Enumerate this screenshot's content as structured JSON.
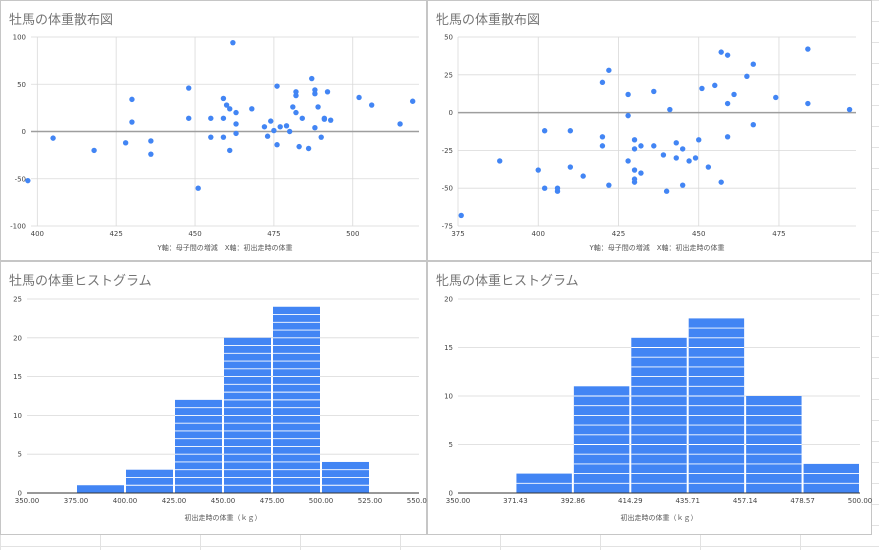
{
  "colors": {
    "series": "#4285f4",
    "grid": "#d9d9d9",
    "zero": "#9e9e9e",
    "text": "#444444"
  },
  "chart_data": [
    {
      "type": "scatter",
      "title": "牡馬の体重散布図",
      "xlabel": "Y軸：母子間の増減　X軸：初出走時の体重",
      "xlim": [
        398,
        521
      ],
      "ylim": [
        -100,
        100
      ],
      "xticks": [
        400,
        425,
        450,
        475,
        500
      ],
      "yticks": [
        -100,
        -50,
        0,
        50,
        100
      ],
      "grid": true,
      "points": [
        [
          397,
          -52
        ],
        [
          405,
          -7
        ],
        [
          418,
          -20
        ],
        [
          428,
          -12
        ],
        [
          430,
          34
        ],
        [
          430,
          10
        ],
        [
          436,
          -10
        ],
        [
          436,
          -24
        ],
        [
          448,
          46
        ],
        [
          448,
          14
        ],
        [
          451,
          -60
        ],
        [
          455,
          14
        ],
        [
          455,
          -6
        ],
        [
          459,
          35
        ],
        [
          459,
          -6
        ],
        [
          459,
          14
        ],
        [
          460,
          28
        ],
        [
          461,
          24
        ],
        [
          461,
          -20
        ],
        [
          462,
          94
        ],
        [
          463,
          20
        ],
        [
          463,
          8
        ],
        [
          463,
          -2
        ],
        [
          468,
          24
        ],
        [
          472,
          5
        ],
        [
          473,
          -5
        ],
        [
          474,
          11
        ],
        [
          475,
          1
        ],
        [
          476,
          48
        ],
        [
          476,
          -14
        ],
        [
          477,
          5
        ],
        [
          479,
          6
        ],
        [
          480,
          0
        ],
        [
          481,
          26
        ],
        [
          482,
          38
        ],
        [
          482,
          42
        ],
        [
          482,
          20
        ],
        [
          483,
          -16
        ],
        [
          484,
          14
        ],
        [
          486,
          -18
        ],
        [
          487,
          56
        ],
        [
          488,
          40
        ],
        [
          488,
          44
        ],
        [
          488,
          4
        ],
        [
          489,
          26
        ],
        [
          490,
          -6
        ],
        [
          491,
          13
        ],
        [
          491,
          14
        ],
        [
          492,
          42
        ],
        [
          493,
          12
        ],
        [
          502,
          36
        ],
        [
          506,
          28
        ],
        [
          515,
          8
        ],
        [
          519,
          32
        ]
      ]
    },
    {
      "type": "scatter",
      "title": "牝馬の体重散布図",
      "xlabel": "Y軸：母子間の増減　X軸：初出走時の体重",
      "xlim": [
        375,
        499
      ],
      "ylim": [
        -75,
        50
      ],
      "xticks": [
        375,
        400,
        425,
        450,
        475
      ],
      "yticks": [
        -75,
        -50,
        -25,
        0,
        25,
        50
      ],
      "grid": true,
      "points": [
        [
          376,
          -68
        ],
        [
          388,
          -32
        ],
        [
          400,
          -38
        ],
        [
          402,
          -50
        ],
        [
          402,
          -12
        ],
        [
          406,
          -50
        ],
        [
          406,
          -52
        ],
        [
          410,
          -12
        ],
        [
          410,
          -36
        ],
        [
          414,
          -42
        ],
        [
          420,
          20
        ],
        [
          420,
          -16
        ],
        [
          420,
          -22
        ],
        [
          422,
          28
        ],
        [
          422,
          -48
        ],
        [
          428,
          12
        ],
        [
          428,
          -2
        ],
        [
          428,
          -32
        ],
        [
          430,
          -18
        ],
        [
          430,
          -24
        ],
        [
          430,
          -38
        ],
        [
          430,
          -44
        ],
        [
          430,
          -46
        ],
        [
          432,
          -22
        ],
        [
          432,
          -40
        ],
        [
          436,
          14
        ],
        [
          436,
          -22
        ],
        [
          439,
          -28
        ],
        [
          440,
          -52
        ],
        [
          441,
          2
        ],
        [
          443,
          -20
        ],
        [
          443,
          -30
        ],
        [
          445,
          -24
        ],
        [
          445,
          -48
        ],
        [
          447,
          -32
        ],
        [
          449,
          -30
        ],
        [
          450,
          -18
        ],
        [
          451,
          16
        ],
        [
          453,
          -36
        ],
        [
          455,
          18
        ],
        [
          457,
          -46
        ],
        [
          457,
          40
        ],
        [
          459,
          38
        ],
        [
          459,
          6
        ],
        [
          459,
          -16
        ],
        [
          461,
          12
        ],
        [
          465,
          24
        ],
        [
          467,
          32
        ],
        [
          467,
          -8
        ],
        [
          474,
          10
        ],
        [
          484,
          42
        ],
        [
          484,
          6
        ],
        [
          497,
          2
        ]
      ]
    },
    {
      "type": "bar",
      "title": "牡馬の体重ヒストグラム",
      "xlabel": "初出走時の体重（ｋｇ）",
      "bin_edges": [
        350,
        375,
        400,
        425,
        450,
        475,
        500,
        525,
        550
      ],
      "tick_labels": [
        "350.00",
        "375.00",
        "400.00",
        "425.00",
        "450.00",
        "475.00",
        "500.00",
        "525.00",
        "550.00"
      ],
      "values": [
        0,
        1,
        3,
        12,
        20,
        24,
        4,
        0
      ],
      "ylim": [
        0,
        25
      ],
      "yticks": [
        0,
        5,
        10,
        15,
        20,
        25
      ],
      "grid": true
    },
    {
      "type": "bar",
      "title": "牝馬の体重ヒストグラム",
      "xlabel": "初出走時の体重（ｋｇ）",
      "bin_edges": [
        350,
        371.43,
        392.86,
        414.29,
        435.71,
        457.14,
        478.57,
        500
      ],
      "tick_labels": [
        "350.00",
        "371.43",
        "392.86",
        "414.29",
        "435.71",
        "457.14",
        "478.57",
        "500.00"
      ],
      "values": [
        0,
        2,
        11,
        16,
        18,
        10,
        3
      ],
      "ylim": [
        0,
        20
      ],
      "yticks": [
        0,
        5,
        10,
        15,
        20
      ],
      "grid": true
    }
  ]
}
